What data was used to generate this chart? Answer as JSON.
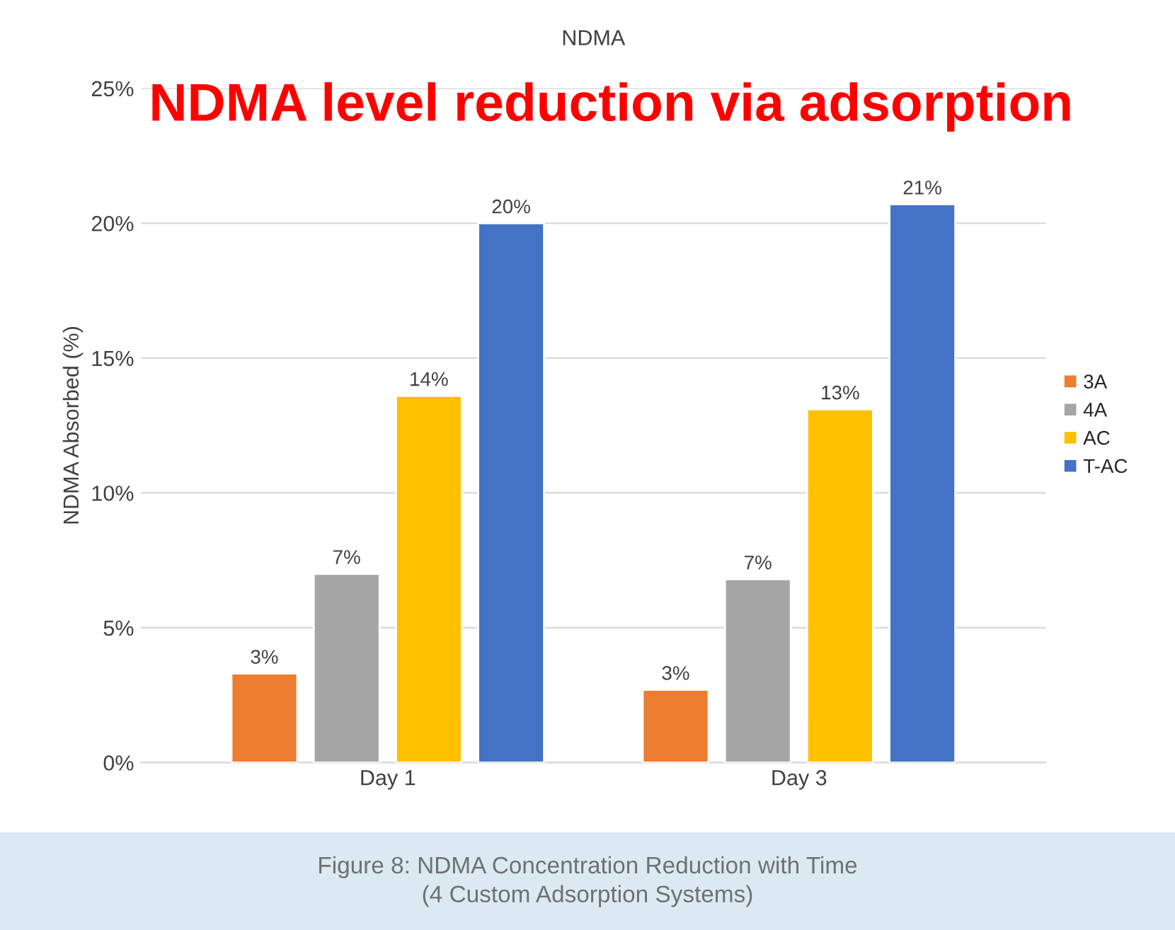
{
  "chart_data": {
    "type": "bar",
    "title": "NDMA",
    "ylabel": "NDMA Absorbed (%)",
    "categories": [
      "Day 1",
      "Day 3"
    ],
    "series": [
      {
        "name": "3A",
        "color": "#ed7d31",
        "values": [
          3.3,
          2.7
        ],
        "value_labels": [
          "3%",
          "3%"
        ]
      },
      {
        "name": "4A",
        "color": "#a5a5a5",
        "values": [
          7.0,
          6.8
        ],
        "value_labels": [
          "7%",
          "7%"
        ]
      },
      {
        "name": "AC",
        "color": "#ffc000",
        "values": [
          13.6,
          13.1
        ],
        "value_labels": [
          "14%",
          "13%"
        ]
      },
      {
        "name": "T-AC",
        "color": "#4472c4",
        "values": [
          20.0,
          20.7
        ],
        "value_labels": [
          "20%",
          "21%"
        ]
      }
    ],
    "ylim": [
      0,
      25
    ],
    "yticks": [
      {
        "value": 0,
        "label": "0%"
      },
      {
        "value": 5,
        "label": "5%"
      },
      {
        "value": 10,
        "label": "10%"
      },
      {
        "value": 15,
        "label": "15%"
      },
      {
        "value": 20,
        "label": "20%"
      },
      {
        "value": 25,
        "label": "25%"
      }
    ],
    "grid": "y",
    "legend": "right",
    "annotations": [
      "NDMA level reduction via adsorption",
      "Figure 8: NDMA Concentration Reduction with Time\n(4 Custom Adsorption Systems)"
    ]
  }
}
